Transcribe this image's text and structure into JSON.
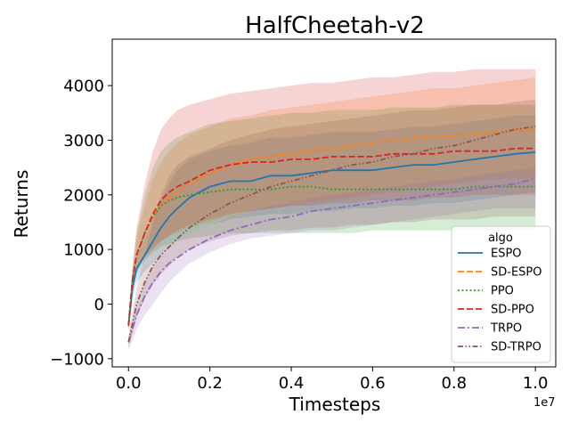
{
  "chart_data": {
    "type": "line",
    "title": "HalfCheetah-v2",
    "xlabel": "Timesteps",
    "ylabel": "Returns",
    "x_multiplier_label": "1e7",
    "xlim": [
      -0.04,
      1.05
    ],
    "ylim": [
      -1150,
      4850
    ],
    "xticks": [
      0.0,
      0.2,
      0.4,
      0.6,
      0.8,
      1.0
    ],
    "xtick_labels": [
      "0.0",
      "0.2",
      "0.4",
      "0.6",
      "0.8",
      "1.0"
    ],
    "yticks": [
      -1000,
      0,
      1000,
      2000,
      3000,
      4000
    ],
    "ytick_labels": [
      "−1000",
      "0",
      "1000",
      "2000",
      "3000",
      "4000"
    ],
    "grid": false,
    "legend": {
      "title": "algo",
      "placement": "lower-right"
    },
    "x": [
      0.0,
      0.01,
      0.02,
      0.04,
      0.06,
      0.08,
      0.1,
      0.12,
      0.15,
      0.2,
      0.25,
      0.3,
      0.35,
      0.4,
      0.45,
      0.5,
      0.55,
      0.6,
      0.65,
      0.7,
      0.75,
      0.8,
      0.85,
      0.9,
      0.95,
      1.0
    ],
    "series": [
      {
        "name": "ESPO",
        "color": "#1f77b4",
        "dash": "solid",
        "values": [
          -400,
          300,
          650,
          900,
          1150,
          1400,
          1600,
          1750,
          1950,
          2150,
          2250,
          2250,
          2350,
          2350,
          2400,
          2450,
          2450,
          2450,
          2500,
          2550,
          2550,
          2600,
          2650,
          2700,
          2750,
          2780
        ],
        "upper": [
          -300,
          500,
          850,
          1200,
          1550,
          1900,
          2200,
          2450,
          2650,
          2800,
          2900,
          2950,
          3050,
          3050,
          3100,
          3150,
          3150,
          3150,
          3200,
          3250,
          3250,
          3300,
          3350,
          3400,
          3450,
          3450
        ],
        "lower": [
          -500,
          100,
          400,
          600,
          750,
          900,
          1050,
          1150,
          1300,
          1450,
          1550,
          1600,
          1650,
          1650,
          1700,
          1700,
          1750,
          1750,
          1800,
          1800,
          1850,
          1850,
          1900,
          1950,
          2000,
          2050
        ]
      },
      {
        "name": "SD-ESPO",
        "color": "#ff7f0e",
        "dash": "dashed",
        "values": [
          -400,
          450,
          900,
          1300,
          1600,
          1800,
          1950,
          2050,
          2200,
          2400,
          2550,
          2650,
          2700,
          2750,
          2800,
          2850,
          2900,
          2950,
          3000,
          3030,
          3060,
          3090,
          3110,
          3140,
          3170,
          3200
        ],
        "upper": [
          -300,
          600,
          1200,
          1800,
          2300,
          2600,
          2800,
          2950,
          3100,
          3250,
          3400,
          3450,
          3550,
          3600,
          3650,
          3700,
          3750,
          3800,
          3850,
          3900,
          3950,
          3950,
          4000,
          4050,
          4100,
          4150
        ],
        "lower": [
          -500,
          300,
          650,
          900,
          1050,
          1150,
          1250,
          1300,
          1400,
          1500,
          1600,
          1700,
          1750,
          1800,
          1850,
          1900,
          1950,
          2000,
          2050,
          2100,
          2150,
          2200,
          2250,
          2280,
          2300,
          2300
        ]
      },
      {
        "name": "PPO",
        "color": "#2ca02c",
        "dash": "dotted",
        "values": [
          -350,
          450,
          900,
          1300,
          1600,
          1800,
          1900,
          1950,
          2000,
          2050,
          2100,
          2100,
          2100,
          2150,
          2150,
          2100,
          2100,
          2100,
          2100,
          2100,
          2100,
          2100,
          2150,
          2150,
          2150,
          2150
        ],
        "upper": [
          -250,
          650,
          1300,
          2000,
          2500,
          2800,
          2950,
          3050,
          3150,
          3300,
          3350,
          3400,
          3450,
          3500,
          3500,
          3550,
          3550,
          3550,
          3600,
          3600,
          3600,
          3650,
          3650,
          3650,
          3650,
          3650
        ],
        "lower": [
          -450,
          200,
          550,
          800,
          950,
          1050,
          1100,
          1150,
          1200,
          1250,
          1300,
          1300,
          1300,
          1300,
          1300,
          1300,
          1300,
          1350,
          1350,
          1350,
          1350,
          1350,
          1350,
          1350,
          1350,
          1350
        ]
      },
      {
        "name": "SD-PPO",
        "color": "#d62728",
        "dash": "dashed",
        "values": [
          -400,
          450,
          900,
          1300,
          1650,
          1900,
          2050,
          2150,
          2250,
          2450,
          2550,
          2600,
          2600,
          2650,
          2650,
          2700,
          2700,
          2700,
          2750,
          2750,
          2750,
          2800,
          2800,
          2800,
          2850,
          2850
        ],
        "upper": [
          -250,
          700,
          1400,
          2200,
          2800,
          3200,
          3400,
          3550,
          3650,
          3750,
          3850,
          3900,
          3950,
          4000,
          4050,
          4050,
          4100,
          4150,
          4150,
          4200,
          4250,
          4250,
          4300,
          4300,
          4300,
          4300
        ],
        "lower": [
          -500,
          250,
          600,
          850,
          1000,
          1150,
          1250,
          1350,
          1450,
          1550,
          1650,
          1700,
          1750,
          1800,
          1800,
          1850,
          1850,
          1900,
          1900,
          1900,
          1950,
          1950,
          2000,
          2000,
          2000,
          2000
        ]
      },
      {
        "name": "TRPO",
        "color": "#9467bd",
        "dash": "dashdot",
        "values": [
          -700,
          -450,
          -200,
          150,
          400,
          600,
          750,
          850,
          1000,
          1200,
          1350,
          1450,
          1550,
          1600,
          1700,
          1750,
          1800,
          1850,
          1900,
          1950,
          2000,
          2050,
          2100,
          2150,
          2200,
          2300
        ],
        "upper": [
          -600,
          -300,
          0,
          400,
          700,
          900,
          1050,
          1150,
          1300,
          1450,
          1600,
          1700,
          1800,
          1850,
          1950,
          2000,
          2050,
          2100,
          2150,
          2200,
          2250,
          2300,
          2350,
          2400,
          2450,
          2500
        ],
        "lower": [
          -850,
          -650,
          -450,
          -200,
          0,
          200,
          400,
          550,
          750,
          950,
          1100,
          1200,
          1250,
          1300,
          1350,
          1350,
          1400,
          1450,
          1500,
          1550,
          1600,
          1650,
          1700,
          1750,
          1750,
          1750
        ]
      },
      {
        "name": "SD-TRPO",
        "color": "#8c564b",
        "dash": "dashdotdot",
        "values": [
          -700,
          -350,
          0,
          400,
          700,
          900,
          1050,
          1200,
          1400,
          1650,
          1850,
          2000,
          2150,
          2250,
          2350,
          2450,
          2550,
          2600,
          2700,
          2750,
          2850,
          2900,
          3000,
          3100,
          3200,
          3250
        ],
        "upper": [
          -600,
          -150,
          300,
          900,
          1500,
          2000,
          2350,
          2550,
          2700,
          2850,
          3000,
          3100,
          3200,
          3250,
          3300,
          3350,
          3400,
          3450,
          3500,
          3550,
          3550,
          3600,
          3650,
          3650,
          3700,
          3750
        ],
        "lower": [
          -800,
          -550,
          -250,
          100,
          350,
          550,
          700,
          850,
          1000,
          1150,
          1250,
          1300,
          1350,
          1350,
          1400,
          1400,
          1450,
          1450,
          1500,
          1500,
          1550,
          1550,
          1550,
          1600,
          1600,
          1600
        ]
      }
    ]
  }
}
